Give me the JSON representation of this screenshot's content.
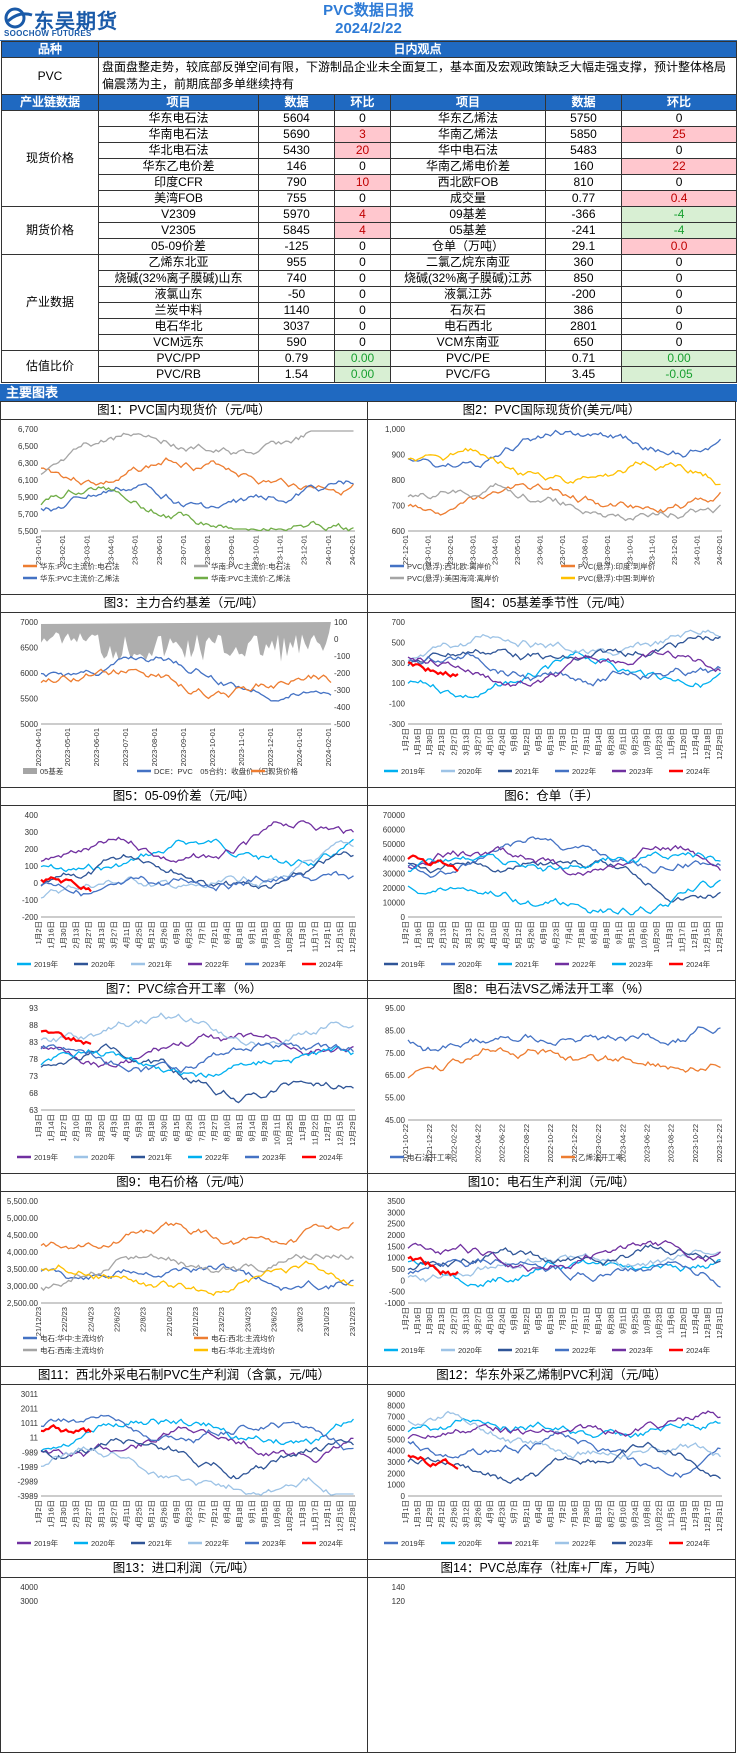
{
  "header": {
    "logo_cn": "东吴期货",
    "logo_en": "SOOCHOW FUTURES",
    "title": "PVC数据日报",
    "date": "2024/2/22"
  },
  "brand_color": "#1f69c1",
  "view": {
    "h_product": "品种",
    "h_view": "日内观点",
    "product": "PVC",
    "text": "盘面盘整走势，较底部反弹空间有限，下游制品企业未全面复工，基本面及宏观政策缺乏大幅走强支撑，预计整体格局偏震荡为主，前期底部多单继续持有"
  },
  "thead": {
    "chain": "产业链数据",
    "item": "项目",
    "data": "数据",
    "chg": "环比"
  },
  "groups": {
    "spot": "现货价格",
    "fut": "期货价格",
    "ind": "产业数据",
    "val": "估值比价"
  },
  "rows": [
    {
      "a": "华东电石法",
      "av": "5604",
      "ac": "0",
      "b": "华东乙烯法",
      "bv": "5750",
      "bc": "0"
    },
    {
      "a": "华南电石法",
      "av": "5690",
      "ac": "3",
      "b": "华南乙烯法",
      "bv": "5850",
      "bc": "25"
    },
    {
      "a": "华北电石法",
      "av": "5430",
      "ac": "20",
      "b": "华中电石法",
      "bv": "5483",
      "bc": "0"
    },
    {
      "a": "华东乙电价差",
      "av": "146",
      "ac": "0",
      "b": "华南乙烯电价差",
      "bv": "160",
      "bc": "22"
    },
    {
      "a": "印度CFR",
      "av": "790",
      "ac": "10",
      "b": "西北欧FOB",
      "bv": "810",
      "bc": "0"
    },
    {
      "a": "美湾FOB",
      "av": "755",
      "ac": "0",
      "b": "成交量",
      "bv": "0.77",
      "bc": "0.4"
    },
    {
      "a": "V2309",
      "av": "5970",
      "ac": "4",
      "b": "09基差",
      "bv": "-366",
      "bc": "-4"
    },
    {
      "a": "V2305",
      "av": "5845",
      "ac": "4",
      "b": "05基差",
      "bv": "-241",
      "bc": "-4"
    },
    {
      "a": "05-09价差",
      "av": "-125",
      "ac": "0",
      "b": "仓单（万吨）",
      "bv": "29.1",
      "bc": "0.0"
    },
    {
      "a": "乙烯东北亚",
      "av": "955",
      "ac": "0",
      "b": "二氯乙烷东南亚",
      "bv": "360",
      "bc": "0"
    },
    {
      "a": "烧碱(32%离子膜碱)山东",
      "av": "740",
      "ac": "0",
      "b": "烧碱(32%离子膜碱)江苏",
      "bv": "850",
      "bc": "0"
    },
    {
      "a": "液氯山东",
      "av": "-50",
      "ac": "0",
      "b": "液氯江苏",
      "bv": "-200",
      "bc": "0"
    },
    {
      "a": "兰炭中料",
      "av": "1140",
      "ac": "0",
      "b": "石灰石",
      "bv": "386",
      "bc": "0"
    },
    {
      "a": "电石华北",
      "av": "3037",
      "ac": "0",
      "b": "电石西北",
      "bv": "2801",
      "bc": "0"
    },
    {
      "a": "VCM远东",
      "av": "590",
      "ac": "0",
      "b": "VCM东南亚",
      "bv": "650",
      "bc": "0"
    },
    {
      "a": "PVC/PP",
      "av": "0.79",
      "ac": "0.00",
      "b": "PVC/PE",
      "bv": "0.71",
      "bc": "0.00"
    },
    {
      "a": "PVC/RB",
      "av": "1.54",
      "ac": "0.00",
      "b": "PVC/FG",
      "bv": "3.45",
      "bc": "-0.05"
    }
  ],
  "section_title": "主要图表",
  "charts": [
    {
      "title": "图1：PVC国内现货价（元/吨）",
      "yticks": [
        "6,700",
        "6,500",
        "6,300",
        "6,100",
        "5,900",
        "5,700",
        "5,500"
      ],
      "xticks": [
        "23-01-01",
        "23-02-01",
        "23-03-01",
        "23-04-01",
        "23-05-01",
        "23-06-01",
        "23-07-01",
        "23-08-01",
        "23-09-01",
        "23-10-01",
        "23-11-01",
        "23-12-01",
        "24-01-01",
        "24-02-01"
      ],
      "legend": [
        "华东:PVC主流价:电石法",
        "华南:PVC主流价:电石法",
        "华东:PVC主流价:乙烯法",
        "华南:PVC主流价:乙烯法"
      ],
      "colors": [
        "#ed7d31",
        "#a5a5a5",
        "#4472c4",
        "#70ad47"
      ]
    },
    {
      "title": "图2：PVC国际现货价(美元/吨）",
      "yticks": [
        "1,000",
        "900",
        "800",
        "700",
        "600"
      ],
      "xticks": [
        "22-12-01",
        "23-01-01",
        "23-02-01",
        "23-03-01",
        "23-04-01",
        "23-05-01",
        "23-06-01",
        "23-07-01",
        "23-08-01",
        "23-09-01",
        "23-10-01",
        "23-11-01",
        "23-12-01",
        "24-01-01",
        "24-02-01"
      ],
      "legend": [
        "PVC(悬浮):西北欧:离岸价",
        "PVC(悬浮):印度:到岸价",
        "PVC(悬浮):美国海湾:离岸价",
        "PVC(悬浮):中国:到岸价"
      ],
      "colors": [
        "#4472c4",
        "#ed7d31",
        "#a5a5a5",
        "#ffc000"
      ]
    },
    {
      "title": "图3：主力合约基差（元/吨）",
      "yticks": [
        "7000",
        "6500",
        "6000",
        "5500",
        "5000"
      ],
      "yticks_r": [
        "100",
        "0",
        "-100",
        "-200",
        "-300",
        "-400",
        "-500"
      ],
      "xticks": [
        "2023-04-01",
        "2023-05-01",
        "2023-06-01",
        "2023-07-01",
        "2023-08-01",
        "2023-09-01",
        "2023-10-01",
        "2023-11-01",
        "2023-12-01",
        "2024-01-01",
        "2024-02-01"
      ],
      "legend": [
        "05基差",
        "DCE：PVC　05合约：收盘价（日）",
        "现货价格"
      ],
      "colors": [
        "#a5a5a5",
        "#4472c4",
        "#ed7d31"
      ]
    },
    {
      "title": "图4：05基差季节性（元/吨）",
      "yticks": [
        "700",
        "500",
        "300",
        "100",
        "-100",
        "-300"
      ],
      "xticks": [
        "1月2日",
        "1月16日",
        "1月30日",
        "2月13日",
        "2月27日",
        "3月13日",
        "3月27日",
        "4月10日",
        "4月24日",
        "5月8日",
        "5月22日",
        "6月5日",
        "6月19日",
        "7月3日",
        "7月17日",
        "7月31日",
        "8月14日",
        "8月28日",
        "9月11日",
        "9月25日",
        "10月9日",
        "10月23日",
        "11月6日",
        "11月20日",
        "12月4日",
        "12月18日",
        "12月29日"
      ],
      "legend": [
        "2019年",
        "2020年",
        "2021年",
        "2022年",
        "2023年",
        "2024年"
      ],
      "colors": [
        "#00b0f0",
        "#9dc3e6",
        "#2f5597",
        "#4472c4",
        "#7030a0",
        "#ff0000"
      ]
    },
    {
      "title": "图5：05-09价差（元/吨）",
      "yticks": [
        "400",
        "300",
        "200",
        "100",
        "0",
        "-100",
        "-200"
      ],
      "xticks": [
        "1月2日",
        "1月16日",
        "1月30日",
        "2月13日",
        "2月27日",
        "3月13日",
        "3月27日",
        "4月11日",
        "4月25日",
        "5月12日",
        "5月26日",
        "6月9日",
        "6月23日",
        "7月7日",
        "7月21日",
        "8月4日",
        "8月18日",
        "9月1日",
        "9月15日",
        "10月6日",
        "10月20日",
        "11月3日",
        "11月17日",
        "12月1日",
        "12月15日",
        "12月29日"
      ],
      "legend": [
        "2019年",
        "2020年",
        "2021年",
        "2022年",
        "2023年",
        "2024年"
      ],
      "colors": [
        "#00b0f0",
        "#2f5597",
        "#9dc3e6",
        "#7030a0",
        "#4472c4",
        "#ff0000"
      ]
    },
    {
      "title": "图6：仓单（手）",
      "yticks": [
        "70000",
        "60000",
        "50000",
        "40000",
        "30000",
        "20000",
        "10000",
        "0"
      ],
      "xticks": [
        "1月2日",
        "1月16日",
        "1月30日",
        "2月13日",
        "2月27日",
        "3月13日",
        "3月27日",
        "4月10日",
        "4月24日",
        "5月12日",
        "5月26日",
        "6月9日",
        "6月23日",
        "7月4日",
        "7月18日",
        "8月4日",
        "8月18日",
        "9月1日",
        "9月15日",
        "10月6日",
        "10月20日",
        "11月3日",
        "11月17日",
        "12月1日",
        "12月15日",
        "12月29日"
      ],
      "legend": [
        "2019年",
        "2020年",
        "2021年",
        "2022年",
        "2023年",
        "2024年"
      ],
      "colors": [
        "#2f5597",
        "#4472c4",
        "#00b0f0",
        "#7030a0",
        "#00b0f0",
        "#ff0000"
      ]
    },
    {
      "title": "图7：PVC综合开工率（%）",
      "yticks": [
        "93",
        "88",
        "83",
        "78",
        "73",
        "68",
        "63"
      ],
      "xticks": [
        "1月3日",
        "1月14日",
        "1月27日",
        "2月10日",
        "3月3日",
        "3月20日",
        "4月3日",
        "4月19日",
        "5月3日",
        "5月18日",
        "5月30日",
        "6月15日",
        "6月29日",
        "7月13日",
        "7月27日",
        "8月10日",
        "8月31日",
        "9月14日",
        "9月28日",
        "10月11日",
        "10月25日",
        "11月8日",
        "11月22日",
        "12月7日",
        "12月15日",
        "12月29日"
      ],
      "legend": [
        "2019年",
        "2020年",
        "2021年",
        "2022年",
        "2023年",
        "2024年"
      ],
      "colors": [
        "#7030a0",
        "#9dc3e6",
        "#2f5597",
        "#00b0f0",
        "#4472c4",
        "#ff0000"
      ]
    },
    {
      "title": "图8：电石法VS乙烯法开工率（%）",
      "yticks": [
        "95.00",
        "85.00",
        "75.00",
        "65.00",
        "55.00",
        "45.00"
      ],
      "xticks": [
        "2021-10-22",
        "2021-12-22",
        "2022-02-22",
        "2022-04-22",
        "2022-06-22",
        "2022-08-22",
        "2022-10-22",
        "2022-12-22",
        "2023-02-22",
        "2023-04-22",
        "2023-06-22",
        "2023-08-22",
        "2023-10-22",
        "2023-12-22"
      ],
      "legend": [
        "电石法开工率",
        "乙烯法开工率"
      ],
      "colors": [
        "#4472c4",
        "#ed7d31"
      ]
    },
    {
      "title": "图9：电石价格（元/吨）",
      "yticks": [
        "5,500.00",
        "5,000.00",
        "4,500.00",
        "4,000.00",
        "3,500.00",
        "3,000.00",
        "2,500.00"
      ],
      "xticks": [
        "21/12/23",
        "22/2/23",
        "22/4/23",
        "22/6/23",
        "22/8/23",
        "22/10/23",
        "22/12/23",
        "23/2/23",
        "23/4/23",
        "23/6/23",
        "23/8/23",
        "23/10/23",
        "23/12/23"
      ],
      "legend": [
        "电石:华中:主流均价",
        "电石:西北:主流均价",
        "电石:西南:主流均价",
        "电石:华北:主流均价"
      ],
      "colors": [
        "#4472c4",
        "#ed7d31",
        "#a5a5a5",
        "#ffc000"
      ]
    },
    {
      "title": "图10：电石生产利润（元/吨）",
      "yticks": [
        "3500",
        "3000",
        "2500",
        "2000",
        "1500",
        "1000",
        "500",
        "0",
        "-500",
        "-1000"
      ],
      "xticks": [
        "1月2日",
        "1月16日",
        "1月30日",
        "2月13日",
        "2月27日",
        "3月13日",
        "3月27日",
        "4月10日",
        "4月24日",
        "5月8日",
        "5月22日",
        "6月5日",
        "6月19日",
        "7月3日",
        "7月17日",
        "7月31日",
        "8月14日",
        "8月28日",
        "9月11日",
        "9月25日",
        "10月9日",
        "10月23日",
        "11月6日",
        "11月20日",
        "12月4日",
        "12月18日",
        "12月31日"
      ],
      "legend": [
        "2019年",
        "2020年",
        "2021年",
        "2022年",
        "2023年",
        "2024年"
      ],
      "colors": [
        "#00b0f0",
        "#9dc3e6",
        "#2f5597",
        "#4472c4",
        "#7030a0",
        "#ff0000"
      ]
    },
    {
      "title": "图11：西北外采电石制PVC生产利润（含氯，元/吨）",
      "yticks": [
        "3011",
        "2011",
        "1011",
        "11",
        "-989",
        "-1989",
        "-2989",
        "-3989"
      ],
      "xticks": [
        "1月2日",
        "1月16日",
        "1月30日",
        "2月13日",
        "2月27日",
        "3月13日",
        "3月27日",
        "4月11日",
        "4月25日",
        "5月12日",
        "5月26日",
        "6月9日",
        "6月23日",
        "7月7日",
        "7月21日",
        "8月4日",
        "8月18日",
        "9月1日",
        "9月15日",
        "10月6日",
        "10月20日",
        "11月3日",
        "11月17日",
        "12月1日",
        "12月15日",
        "12月28日"
      ],
      "legend": [
        "2019年",
        "2020年",
        "2021年",
        "2022年",
        "2023年",
        "2024年"
      ],
      "colors": [
        "#7030a0",
        "#00b0f0",
        "#2f5597",
        "#9dc3e6",
        "#4472c4",
        "#ff0000"
      ]
    },
    {
      "title": "图12：华东外采乙烯制PVC利润（元/吨）",
      "yticks": [
        "9000",
        "8000",
        "7000",
        "6000",
        "5000",
        "4000",
        "3000",
        "2000",
        "1000",
        "0"
      ],
      "xticks": [
        "1月1日",
        "1月15日",
        "1月29日",
        "2月12日",
        "2月26日",
        "3月12日",
        "3月26日",
        "4月9日",
        "4月23日",
        "5月7日",
        "5月21日",
        "6月4日",
        "6月18日",
        "7月2日",
        "7月16日",
        "7月30日",
        "8月13日",
        "8月27日",
        "9月10日",
        "9月24日",
        "10月8日",
        "10月22日",
        "11月5日",
        "11月19日",
        "12月3日",
        "12月17日",
        "12月31日"
      ],
      "legend": [
        "2019年",
        "2020年",
        "2021年",
        "2022年",
        "2023年",
        "2024年"
      ],
      "colors": [
        "#4472c4",
        "#00b0f0",
        "#7030a0",
        "#9dc3e6",
        "#2f5597",
        "#ff0000"
      ]
    },
    {
      "title": "图13：进口利润（元/吨）",
      "yticks": [
        "4000",
        "3000"
      ],
      "xticks": [],
      "legend": [],
      "colors": []
    },
    {
      "title": "图14：PVC总库存（社库+厂库，万吨）",
      "yticks": [
        "140",
        "120"
      ],
      "xticks": [],
      "legend": [],
      "colors": []
    }
  ]
}
